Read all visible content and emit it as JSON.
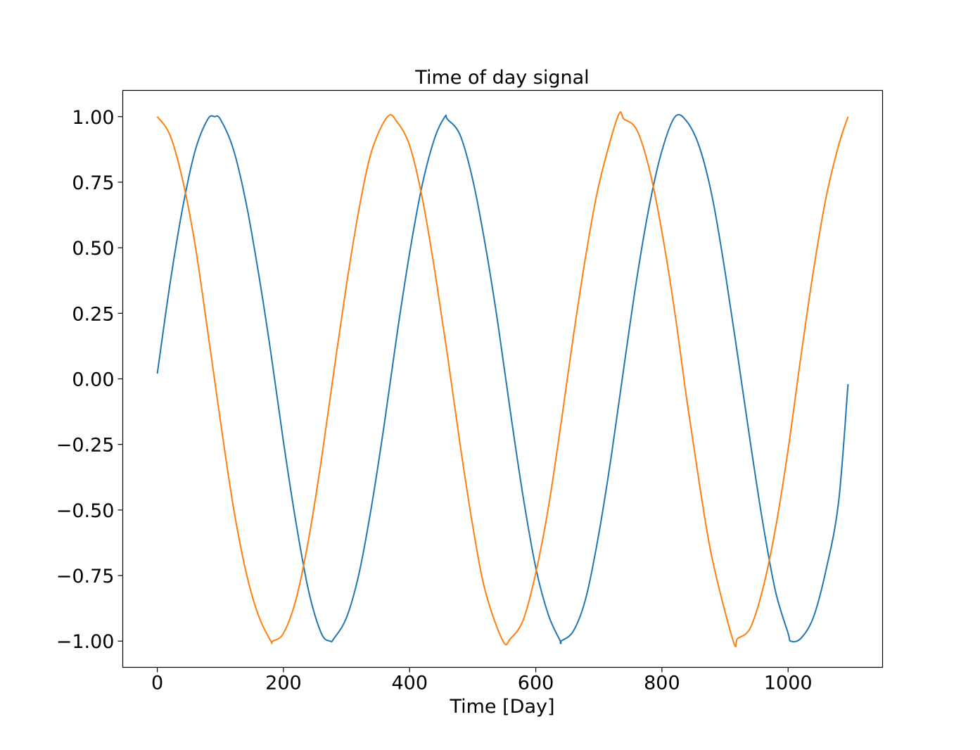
{
  "chart_data": {
    "type": "line",
    "title": "Time of day signal",
    "xlabel": "Time [Day]",
    "ylabel": "",
    "xlim": [
      -54.75,
      1149.75
    ],
    "ylim": [
      -1.1,
      1.1
    ],
    "xticks": [
      0,
      200,
      400,
      600,
      800,
      1000
    ],
    "xtick_labels": [
      "0",
      "200",
      "400",
      "600",
      "800",
      "1000"
    ],
    "yticks": [
      1.0,
      0.75,
      0.5,
      0.25,
      0.0,
      -0.25,
      -0.5,
      -0.75,
      -1.0
    ],
    "ytick_labels": [
      "1.00",
      "0.75",
      "0.50",
      "0.25",
      "0.00",
      "−0.25",
      "−0.50",
      "−0.75",
      "−1.00"
    ],
    "grid": false,
    "legend": "none",
    "series": [
      {
        "color": "#1f77b4",
        "x": [
          0,
          20,
          40,
          60,
          80,
          91,
          100,
          120,
          140,
          160,
          180,
          200,
          220,
          240,
          260,
          274,
          280,
          300,
          320,
          340,
          360,
          380,
          400,
          420,
          440,
          456,
          460,
          480,
          500,
          520,
          540,
          560,
          580,
          600,
          620,
          639,
          640,
          660,
          680,
          700,
          720,
          740,
          760,
          780,
          800,
          821,
          840,
          860,
          880,
          900,
          920,
          940,
          960,
          980,
          1000,
          1004,
          1020,
          1040,
          1060,
          1080,
          1095
        ],
        "y": [
          0.02,
          0.36,
          0.65,
          0.87,
          0.99,
          1.0,
          0.99,
          0.88,
          0.68,
          0.41,
          0.1,
          -0.24,
          -0.55,
          -0.81,
          -0.97,
          -1.0,
          -0.99,
          -0.91,
          -0.74,
          -0.48,
          -0.17,
          0.17,
          0.48,
          0.74,
          0.92,
          1.0,
          0.99,
          0.93,
          0.76,
          0.51,
          0.21,
          -0.13,
          -0.45,
          -0.72,
          -0.9,
          -1.0,
          -1.0,
          -0.96,
          -0.83,
          -0.59,
          -0.29,
          0.05,
          0.38,
          0.66,
          0.87,
          1.0,
          0.98,
          0.88,
          0.69,
          0.41,
          0.09,
          -0.24,
          -0.55,
          -0.81,
          -0.97,
          -1.0,
          -0.99,
          -0.91,
          -0.73,
          -0.47,
          -0.02
        ]
      },
      {
        "color": "#ff7f0e",
        "x": [
          0,
          20,
          40,
          60,
          80,
          100,
          120,
          140,
          160,
          180,
          183,
          200,
          220,
          240,
          260,
          280,
          300,
          320,
          340,
          365,
          380,
          400,
          420,
          440,
          460,
          480,
          500,
          520,
          548,
          560,
          580,
          600,
          620,
          640,
          660,
          680,
          700,
          730,
          740,
          760,
          780,
          800,
          820,
          840,
          860,
          880,
          913,
          920,
          940,
          960,
          980,
          1000,
          1020,
          1040,
          1060,
          1080,
          1095
        ],
        "y": [
          1.0,
          0.93,
          0.76,
          0.51,
          0.18,
          -0.16,
          -0.48,
          -0.73,
          -0.9,
          -1.0,
          -1.0,
          -0.97,
          -0.84,
          -0.61,
          -0.31,
          0.03,
          0.36,
          0.65,
          0.87,
          1.0,
          0.98,
          0.89,
          0.69,
          0.41,
          0.09,
          -0.25,
          -0.56,
          -0.81,
          -1.0,
          -0.99,
          -0.92,
          -0.74,
          -0.49,
          -0.17,
          0.17,
          0.48,
          0.74,
          1.0,
          0.99,
          0.95,
          0.8,
          0.56,
          0.26,
          -0.09,
          -0.41,
          -0.69,
          -1.0,
          -0.99,
          -0.95,
          -0.8,
          -0.57,
          -0.27,
          0.08,
          0.41,
          0.69,
          0.89,
          1.0
        ]
      }
    ]
  }
}
